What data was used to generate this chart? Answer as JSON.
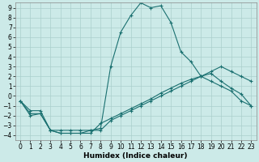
{
  "x": [
    0,
    1,
    2,
    3,
    4,
    5,
    6,
    7,
    8,
    9,
    10,
    11,
    12,
    13,
    14,
    15,
    16,
    17,
    18,
    19,
    20,
    21,
    22,
    23
  ],
  "line1": [
    -0.5,
    -1.5,
    -1.5,
    -3.5,
    -3.5,
    -3.5,
    -3.5,
    -3.5,
    -3.5,
    -2.5,
    -2.0,
    -1.5,
    -1.0,
    -0.5,
    0.0,
    0.5,
    1.0,
    1.5,
    2.0,
    2.5,
    3.0,
    2.5,
    2.0,
    1.5
  ],
  "line2": [
    -0.5,
    -1.8,
    -1.8,
    -3.5,
    -3.8,
    -3.8,
    -3.8,
    -3.8,
    -2.8,
    -2.3,
    -1.8,
    -1.3,
    -0.8,
    -0.3,
    0.3,
    0.8,
    1.3,
    1.7,
    2.0,
    2.3,
    1.5,
    0.8,
    0.2,
    -1.0
  ],
  "line3": [
    -0.5,
    -2.0,
    -1.8,
    -3.5,
    -3.8,
    -3.8,
    -3.8,
    -3.5,
    -3.3,
    3.0,
    6.5,
    8.2,
    9.5,
    9.0,
    9.2,
    7.5,
    4.5,
    3.5,
    2.0,
    1.5,
    1.0,
    0.5,
    -0.5,
    -1.0
  ],
  "line_color": "#1a7070",
  "bg_color": "#cceae8",
  "grid_color": "#aacfcc",
  "xlabel": "Humidex (Indice chaleur)",
  "ylim": [
    -4.5,
    9.5
  ],
  "xlim": [
    -0.5,
    23.5
  ],
  "yticks": [
    -4,
    -3,
    -2,
    -1,
    0,
    1,
    2,
    3,
    4,
    5,
    6,
    7,
    8,
    9
  ],
  "xticks": [
    0,
    1,
    2,
    3,
    4,
    5,
    6,
    7,
    8,
    9,
    10,
    11,
    12,
    13,
    14,
    15,
    16,
    17,
    18,
    19,
    20,
    21,
    22,
    23
  ],
  "tick_fontsize": 5.5,
  "xlabel_fontsize": 6.5
}
